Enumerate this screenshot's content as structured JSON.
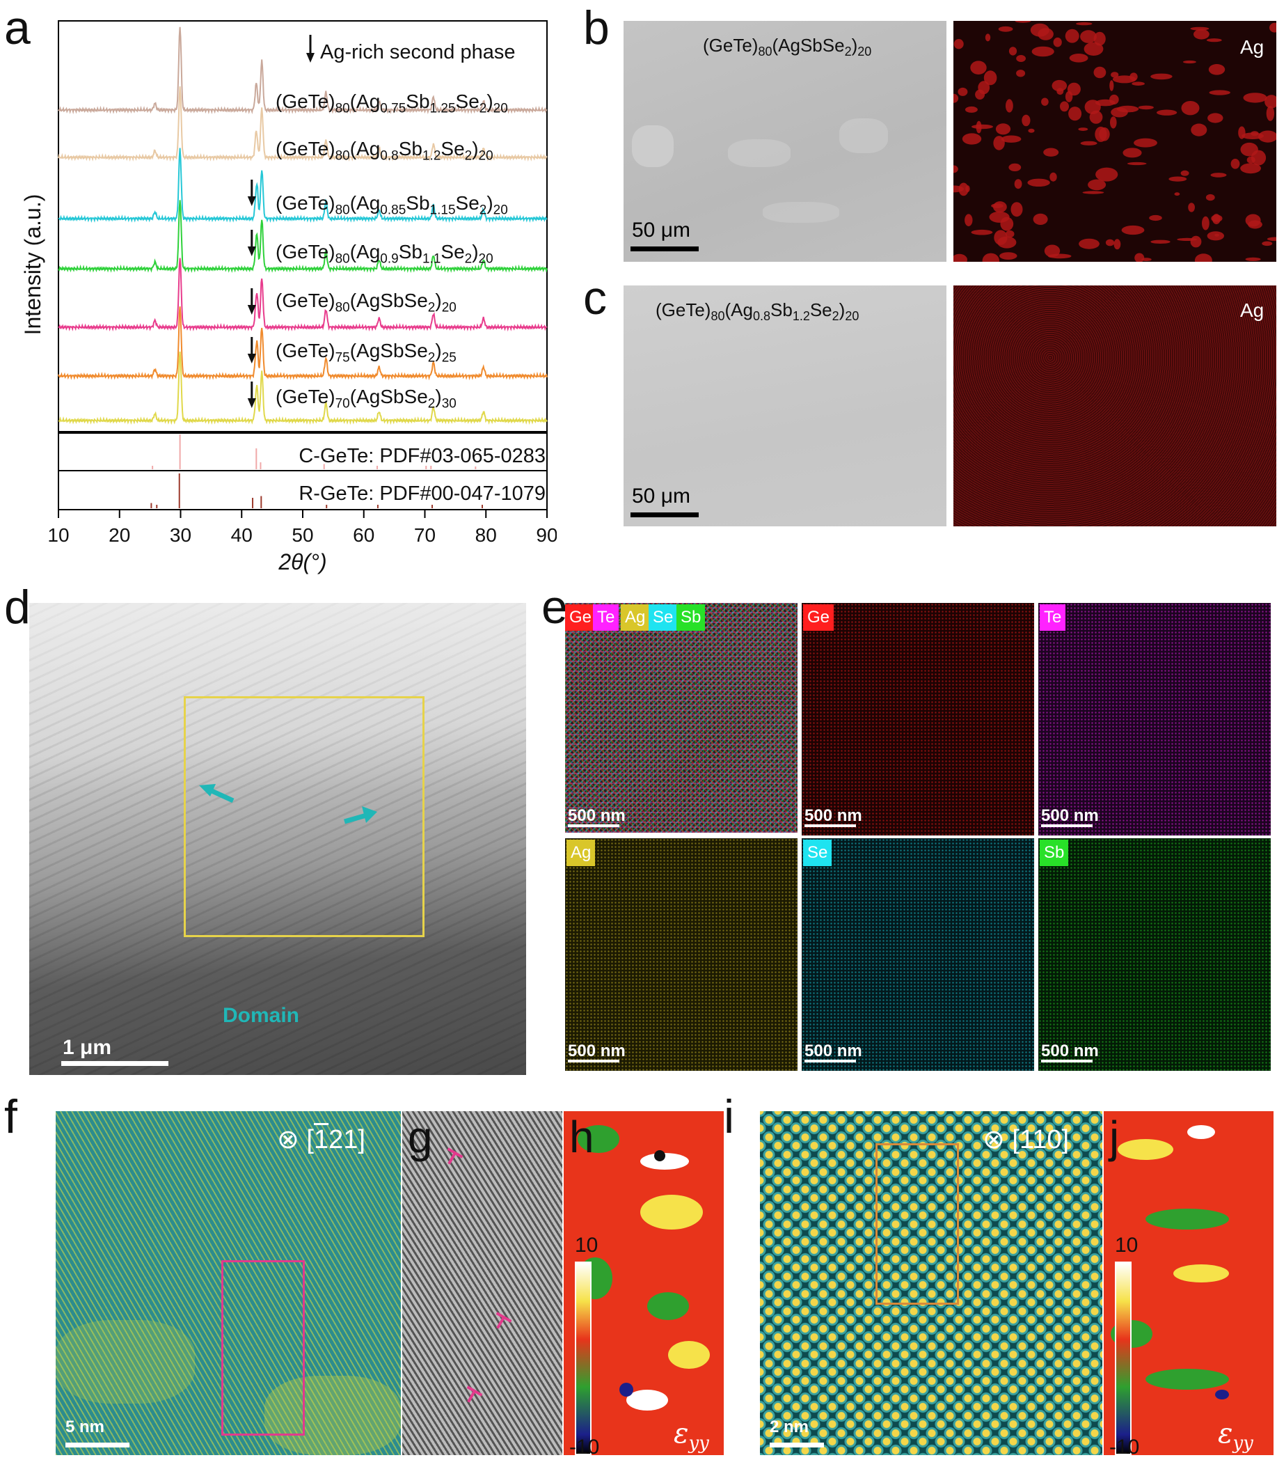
{
  "panel_labels": {
    "a": "a",
    "b": "b",
    "c": "c",
    "d": "d",
    "e": "e",
    "f": "f",
    "g": "g",
    "h": "h",
    "i": "i",
    "j": "j"
  },
  "panel_a": {
    "ylabel": "Intensity (a.u.)",
    "xlabel": "2θ(°)",
    "legend_note": "Ag-rich second phase",
    "ref1": "C-GeTe: PDF#03-065-0283",
    "ref2": "R-GeTe: PDF#00-047-1079",
    "samples": [
      {
        "pre": "(GeTe)",
        "s1": "80",
        "m1": "(Ag",
        "s2": "0.75",
        "m2": "Sb",
        "s3": "1.25",
        "m3": "Se",
        "s4": "2",
        "m4": ")",
        "s5": "20",
        "color": "#c9a89a"
      },
      {
        "pre": "(GeTe)",
        "s1": "80",
        "m1": "(Ag",
        "s2": "0.8",
        "m2": "Sb",
        "s3": "1.2",
        "m3": "Se",
        "s4": "2",
        "m4": ")",
        "s5": "20",
        "color": "#e8c9a4"
      },
      {
        "pre": "(GeTe)",
        "s1": "80",
        "m1": "(Ag",
        "s2": "0.85",
        "m2": "Sb",
        "s3": "1.15",
        "m3": "Se",
        "s4": "2",
        "m4": ")",
        "s5": "20",
        "color": "#25c7d6"
      },
      {
        "pre": "(GeTe)",
        "s1": "80",
        "m1": "(Ag",
        "s2": "0.9",
        "m2": "Sb",
        "s3": "1.1",
        "m3": "Se",
        "s4": "2",
        "m4": ")",
        "s5": "20",
        "color": "#2ed13a"
      },
      {
        "pre": "(GeTe)",
        "s1": "80",
        "m1": "(AgSbSe",
        "s2": "2",
        "m2": ")",
        "s3": "20",
        "m3": "",
        "s4": "",
        "m4": "",
        "s5": "",
        "color": "#e83b8c"
      },
      {
        "pre": "(GeTe)",
        "s1": "75",
        "m1": "(AgSbSe",
        "s2": "2",
        "m2": ")",
        "s3": "25",
        "m3": "",
        "s4": "",
        "m4": "",
        "s5": "",
        "color": "#f08a2c"
      },
      {
        "pre": "(GeTe)",
        "s1": "70",
        "m1": "(AgSbSe",
        "s2": "2",
        "m2": ")",
        "s3": "30",
        "m3": "",
        "s4": "",
        "m4": "",
        "s5": "",
        "color": "#e0d84a"
      }
    ]
  },
  "chart_data": {
    "type": "line",
    "xlabel": "2θ(°)",
    "ylabel": "Intensity (a.u.)",
    "xlim": [
      10,
      90
    ],
    "xticks": [
      "10",
      "20",
      "30",
      "40",
      "50",
      "60",
      "70",
      "80",
      "90"
    ],
    "peaks_2theta": [
      25.8,
      29.9,
      42.4,
      43.3,
      53.8,
      62.5,
      71.4,
      79.6
    ],
    "peak_rel_heights": [
      0.03,
      1.0,
      0.12,
      0.22,
      0.08,
      0.04,
      0.06,
      0.04
    ],
    "ag_second_phase_2theta": 41.2,
    "series": [
      {
        "name": "(GeTe)80(Ag0.75Sb1.25Se2)20",
        "marker": false
      },
      {
        "name": "(GeTe)80(Ag0.8Sb1.2Se2)20",
        "marker": false
      },
      {
        "name": "(GeTe)80(Ag0.85Sb1.15Se2)20",
        "marker": true
      },
      {
        "name": "(GeTe)80(Ag0.9Sb1.1Se2)20",
        "marker": true
      },
      {
        "name": "(GeTe)80(AgSbSe2)20",
        "marker": true
      },
      {
        "name": "(GeTe)75(AgSbSe2)25",
        "marker": true
      },
      {
        "name": "(GeTe)70(AgSbSe2)30",
        "marker": true
      }
    ],
    "ref_cubic": [
      [
        25.4,
        0.1
      ],
      [
        29.9,
        1.0
      ],
      [
        42.4,
        0.6
      ],
      [
        43.1,
        0.2
      ],
      [
        53.5,
        0.15
      ],
      [
        62.2,
        0.1
      ],
      [
        70.2,
        0.1
      ],
      [
        71.0,
        0.1
      ],
      [
        78.3,
        0.08
      ]
    ],
    "ref_rhombo": [
      [
        25.2,
        0.15
      ],
      [
        26.1,
        0.1
      ],
      [
        29.8,
        1.0
      ],
      [
        41.8,
        0.3
      ],
      [
        43.2,
        0.35
      ],
      [
        53.9,
        0.1
      ],
      [
        62.3,
        0.1
      ],
      [
        71.2,
        0.1
      ],
      [
        79.4,
        0.1
      ]
    ]
  },
  "panel_b": {
    "formula_pre": "(GeTe)",
    "s1": "80",
    "formula_mid": "(AgSbSe",
    "s2": "2",
    "formula_end": ")",
    "s3": "20",
    "scale": "50 μm",
    "map_label": "Ag"
  },
  "panel_c": {
    "formula_pre": "(GeTe)",
    "s1": "80",
    "m1": "(Ag",
    "s2": "0.8",
    "m2": "Sb",
    "s3": "1.2",
    "m3": "Se",
    "s4": "2",
    "m4": ")",
    "s5": "20",
    "scale": "50 μm",
    "map_label": "Ag"
  },
  "panel_d": {
    "scale": "1 μm",
    "domain_label": "Domain"
  },
  "panel_e": {
    "composite_tags": [
      {
        "t": "Ge",
        "c": "#ff1f1f"
      },
      {
        "t": "Te",
        "c": "#ff22ff"
      },
      {
        "t": "Ag",
        "c": "#d9c62a"
      },
      {
        "t": "Se",
        "c": "#1fe3f0"
      },
      {
        "t": "Sb",
        "c": "#28e028"
      }
    ],
    "maps": [
      {
        "t": "Ge",
        "c": "#ff1f1f",
        "bg": "#1d0303"
      },
      {
        "t": "Te",
        "c": "#ff22ff",
        "bg": "#1c0420"
      },
      {
        "t": "Ag",
        "c": "#d9c62a",
        "bg": "#1c1a02"
      },
      {
        "t": "Se",
        "c": "#1fe3f0",
        "bg": "#03181c"
      },
      {
        "t": "Sb",
        "c": "#28e028",
        "bg": "#031a06"
      }
    ],
    "scale": "500 nm"
  },
  "panel_f": {
    "zone_axis": "[121]",
    "zone_bar": "1",
    "scale": "5 nm"
  },
  "panel_h": {
    "cb_max": "10",
    "cb_min": "-10",
    "strain_symbol": "ε",
    "strain_sub": "yy"
  },
  "panel_i": {
    "zone_axis": "[110]",
    "scale": "2 nm"
  },
  "panel_j": {
    "cb_max": "10",
    "cb_min": "-10",
    "strain_symbol": "ε",
    "strain_sub": "yy"
  }
}
